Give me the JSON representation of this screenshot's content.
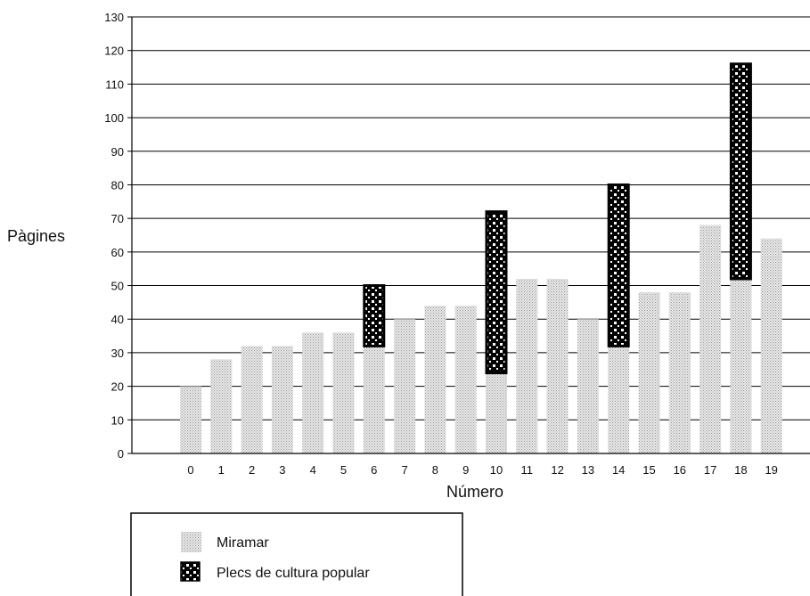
{
  "chart_data": {
    "type": "bar",
    "xlabel": "Número",
    "ylabel": "Pàgines",
    "ylim": [
      0,
      130
    ],
    "yticks": [
      0,
      10,
      20,
      30,
      40,
      50,
      60,
      70,
      80,
      90,
      100,
      110,
      120,
      130
    ],
    "grid": true,
    "stacked": true,
    "legend_position": "bottom-left",
    "categories": [
      "0",
      "1",
      "2",
      "3",
      "4",
      "5",
      "6",
      "7",
      "8",
      "9",
      "10",
      "11",
      "12",
      "13",
      "14",
      "15",
      "16",
      "17",
      "18",
      "19"
    ],
    "series": [
      {
        "name": "Miramar",
        "pattern": "fine-dots",
        "color": "#d4d4d4",
        "values": [
          20,
          28,
          32,
          32,
          36,
          36,
          32,
          40,
          44,
          44,
          24,
          52,
          52,
          40,
          32,
          48,
          48,
          68,
          52,
          64
        ]
      },
      {
        "name": "Plecs de cultura popular",
        "pattern": "checker",
        "color": "#000000",
        "values": [
          0,
          0,
          0,
          0,
          0,
          0,
          18,
          0,
          0,
          0,
          48,
          0,
          0,
          0,
          48,
          0,
          0,
          0,
          64,
          0
        ]
      }
    ]
  }
}
